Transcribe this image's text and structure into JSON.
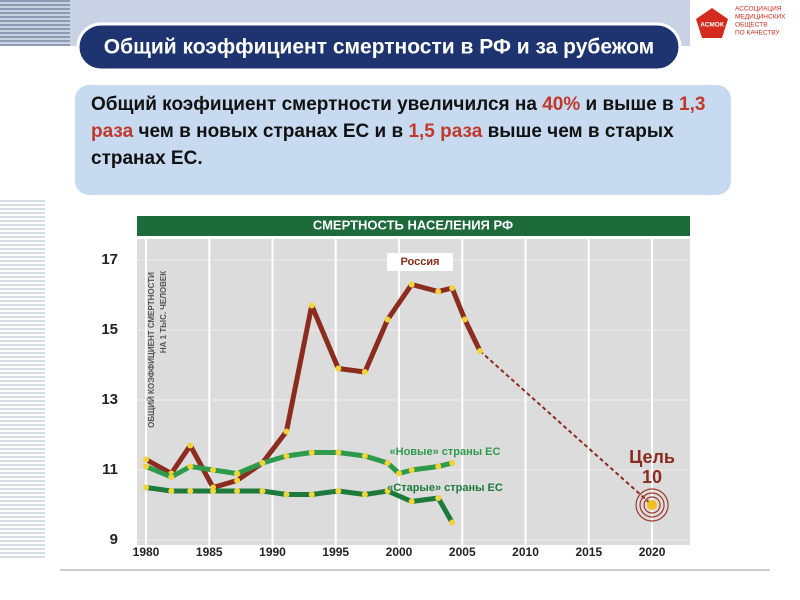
{
  "header": {
    "title": "Общий коэффициент смертности в РФ и за рубежом",
    "logo_abbr": "АСМОК",
    "logo_text": [
      "АССОЦИАЦИЯ",
      "МЕДИЦИНСКИХ",
      "ОБЩЕСТВ",
      "ПО КАЧЕСТВУ"
    ]
  },
  "summary": {
    "highlight_color": "#c0392b",
    "parts": [
      {
        "text": "Общий коэфициент смертности увеличился на ",
        "highlight": false
      },
      {
        "text": "40%",
        "highlight": true
      },
      {
        "text": " и выше в ",
        "highlight": false
      },
      {
        "text": "1,3 раза",
        "highlight": true
      },
      {
        "text": " чем в новых странах ЕС и в ",
        "highlight": false
      },
      {
        "text": "1,5 раза",
        "highlight": true
      },
      {
        "text": " выше  чем в старых странах ЕС.",
        "highlight": false
      }
    ]
  },
  "chart_data": {
    "type": "line",
    "title": "СМЕРТНОСТЬ НАСЕЛЕНИЯ РФ",
    "y_label": [
      "ОБЩИЙ КОЭФФИЦИЕНТ СМЕРТНОСТИ",
      "НА 1 ТЫС. ЧЕЛОВЕК"
    ],
    "xlim": [
      1980,
      2023
    ],
    "xticks": [
      1980,
      1985,
      1990,
      1995,
      2000,
      2005,
      2010,
      2015,
      2020
    ],
    "ylim": [
      9,
      17.6
    ],
    "yticks": [
      9,
      11,
      13,
      15,
      17
    ],
    "grid": true,
    "series": [
      {
        "name": "Россия",
        "color": "#8b2c1f",
        "x": [
          1980,
          1982,
          1983.5,
          1985.3,
          1987.2,
          1989.2,
          1991.1,
          1993.1,
          1995.2,
          1997.3,
          1999.1,
          2001,
          2003.1,
          2004.2,
          2005.2,
          2006.4
        ],
        "values": [
          11.3,
          10.9,
          11.7,
          10.5,
          10.7,
          11.2,
          12.1,
          15.7,
          13.9,
          13.8,
          15.3,
          16.3,
          16.1,
          16.2,
          15.3,
          14.4
        ]
      },
      {
        "name": "«Новые» страны ЕС",
        "color": "#2e9a4c",
        "x": [
          1980,
          1982,
          1983.5,
          1985.3,
          1987.2,
          1989.2,
          1991.1,
          1993.1,
          1995.2,
          1997.3,
          1999.1,
          2000,
          2001,
          2003.1,
          2004.2
        ],
        "values": [
          11.1,
          10.8,
          11.1,
          11.0,
          10.9,
          11.2,
          11.4,
          11.5,
          11.5,
          11.4,
          11.2,
          10.9,
          11.0,
          11.1,
          11.2
        ]
      },
      {
        "name": "«Старые» страны ЕС",
        "color": "#1e7a3c",
        "x": [
          1980,
          1982,
          1983.5,
          1985.3,
          1987.2,
          1989.2,
          1991.1,
          1993.1,
          1995.2,
          1997.3,
          1999.1,
          2001,
          2003.1,
          2004.2
        ],
        "values": [
          10.5,
          10.4,
          10.4,
          10.4,
          10.4,
          10.4,
          10.3,
          10.3,
          10.4,
          10.3,
          10.4,
          10.1,
          10.2,
          9.5
        ]
      }
    ],
    "target": {
      "label": "Цель",
      "x": 2020,
      "value": 10,
      "color": "#f0c020"
    }
  }
}
